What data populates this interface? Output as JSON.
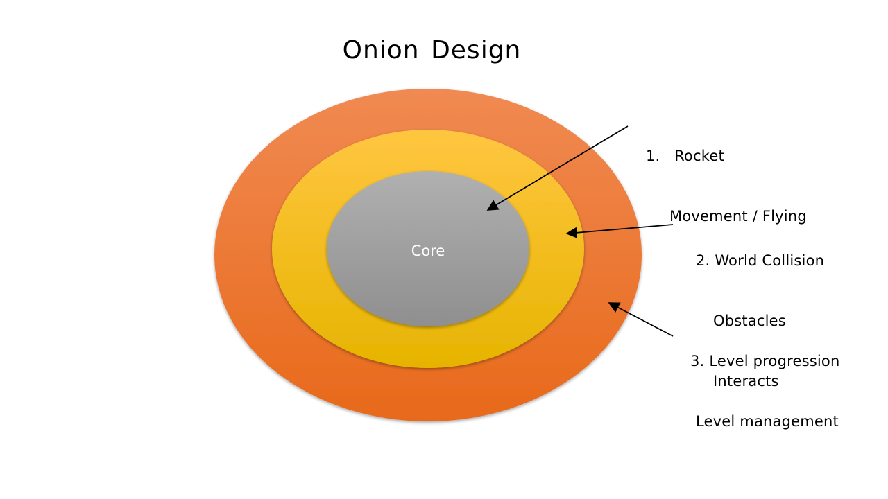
{
  "title": "Onion Design",
  "layers": {
    "core": {
      "label": "Core",
      "color": "#a0a0a0"
    },
    "middle": {
      "color": "#ffc000"
    },
    "outer": {
      "color": "#ed7d31"
    }
  },
  "annotations": [
    {
      "number": "1.",
      "lines": [
        "Rocket",
        "Movement / Flying"
      ]
    },
    {
      "number": "2.",
      "lines": [
        "World Collision",
        "Obstacles",
        "Interacts"
      ]
    },
    {
      "number": "3.",
      "lines": [
        "Level progression",
        "Level management"
      ]
    }
  ]
}
